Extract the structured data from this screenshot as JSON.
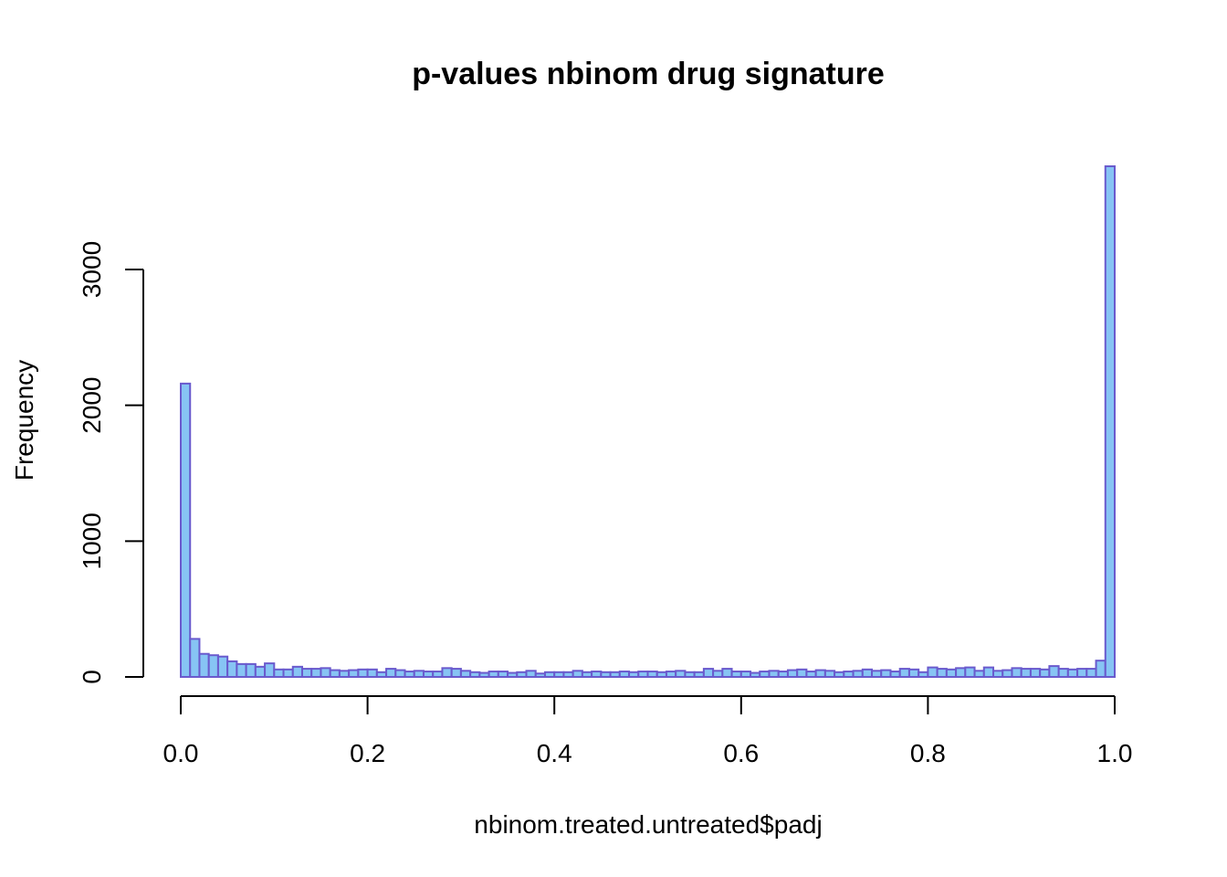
{
  "chart_data": {
    "type": "bar",
    "title": "p-values nbinom drug signature",
    "xlabel": "nbinom.treated.untreated$padj",
    "ylabel": "Frequency",
    "xlim": [
      0,
      1
    ],
    "ylim": [
      0,
      3800
    ],
    "bin_width": 0.01,
    "x_ticks": [
      "0.0",
      "0.2",
      "0.4",
      "0.6",
      "0.8",
      "1.0"
    ],
    "x_tick_values": [
      0,
      0.2,
      0.4,
      0.6,
      0.8,
      1.0
    ],
    "y_ticks": [
      "0",
      "1000",
      "2000",
      "3000"
    ],
    "y_tick_values": [
      0,
      1000,
      2000,
      3000
    ],
    "bar_fill": "#87c4f4",
    "bar_border": "#6a5acd",
    "grid": false,
    "values": [
      2160,
      280,
      170,
      160,
      150,
      115,
      95,
      95,
      75,
      100,
      55,
      55,
      75,
      60,
      60,
      65,
      50,
      45,
      50,
      55,
      55,
      35,
      60,
      50,
      40,
      45,
      40,
      40,
      65,
      60,
      45,
      35,
      30,
      40,
      40,
      30,
      35,
      45,
      25,
      35,
      35,
      35,
      45,
      35,
      40,
      35,
      35,
      40,
      35,
      40,
      40,
      35,
      40,
      45,
      35,
      35,
      60,
      45,
      60,
      40,
      40,
      30,
      40,
      45,
      40,
      50,
      55,
      40,
      50,
      45,
      35,
      40,
      45,
      55,
      45,
      50,
      40,
      60,
      55,
      35,
      70,
      60,
      55,
      65,
      70,
      45,
      70,
      45,
      50,
      65,
      60,
      60,
      55,
      80,
      60,
      55,
      60,
      60,
      120,
      3760
    ]
  }
}
